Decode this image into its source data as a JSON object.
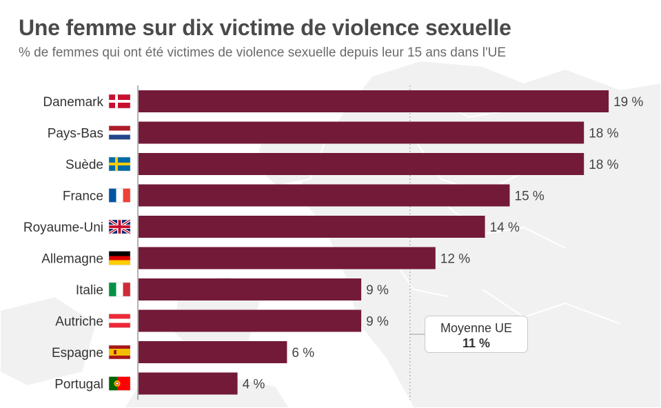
{
  "header": {
    "title": "Une femme sur dix victime de violence sexuelle",
    "subtitle": "% de femmes qui ont été victimes de violence sexuelle depuis leur 15 ans dans l'UE"
  },
  "chart_data": {
    "type": "bar",
    "orientation": "horizontal",
    "categories": [
      "Danemark",
      "Pays-Bas",
      "Suède",
      "France",
      "Royaume-Uni",
      "Allemagne",
      "Italie",
      "Autriche",
      "Espagne",
      "Portugal"
    ],
    "values": [
      19,
      18,
      18,
      15,
      14,
      12,
      9,
      9,
      6,
      4
    ],
    "value_labels": [
      "19 %",
      "18 %",
      "18 %",
      "15 %",
      "14 %",
      "12 %",
      "9 %",
      "9 %",
      "6 %",
      "4 %"
    ],
    "flags": [
      "flag-denmark-icon",
      "flag-netherlands-icon",
      "flag-sweden-icon",
      "flag-france-icon",
      "flag-uk-icon",
      "flag-germany-icon",
      "flag-italy-icon",
      "flag-austria-icon",
      "flag-spain-icon",
      "flag-portugal-icon"
    ],
    "xlim": [
      0,
      19
    ],
    "bar_color": "#731a38",
    "reference_line": {
      "value": 11,
      "label": "Moyenne UE",
      "value_label": "11 %"
    }
  }
}
